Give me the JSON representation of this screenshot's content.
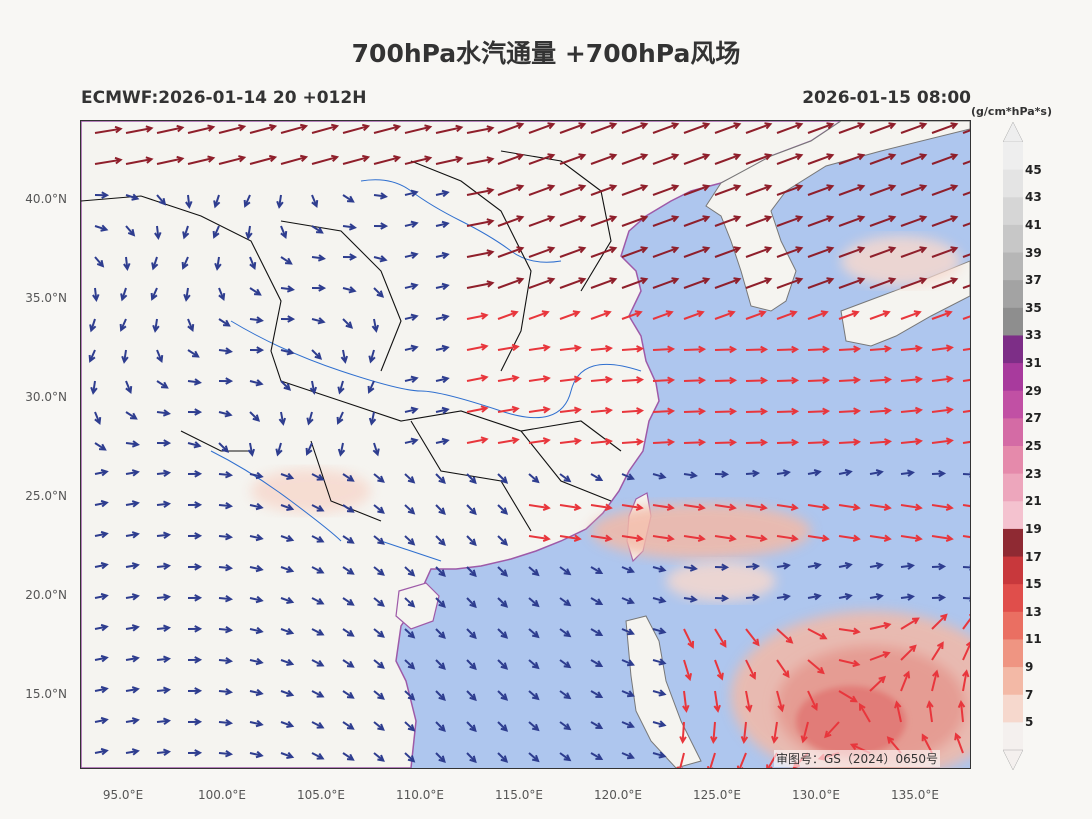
{
  "header": {
    "title": "700hPa水汽通量 +700hPa风场",
    "model_run": "ECMWF:2026-01-14 20 +012H",
    "valid_time": "2026-01-15 08:00",
    "unit": "(g/cm*hPa*s)"
  },
  "axes": {
    "lat_labels": [
      "40.0°N",
      "35.0°N",
      "30.0°N",
      "25.0°N",
      "20.0°N",
      "15.0°N"
    ],
    "lon_labels": [
      "95.0°E",
      "100.0°E",
      "105.0°E",
      "110.0°E",
      "115.0°E",
      "120.0°E",
      "125.0°E",
      "130.0°E",
      "135.0°E"
    ]
  },
  "colorbar": {
    "labels": [
      "45",
      "43",
      "41",
      "39",
      "37",
      "35",
      "33",
      "31",
      "29",
      "27",
      "25",
      "23",
      "21",
      "19",
      "17",
      "15",
      "13",
      "11",
      "9",
      "7",
      "5"
    ],
    "colors": [
      "#f4f0ee",
      "#f6d8cd",
      "#f3b9a6",
      "#ef9582",
      "#ea6f62",
      "#e04e4b",
      "#c8383c",
      "#8f2a33",
      "#f4c2cf",
      "#eda6bc",
      "#e58aab",
      "#d46ba5",
      "#c150a4",
      "#a83a9d",
      "#7d2e87",
      "#8e8e8e",
      "#a3a3a3",
      "#b6b6b6",
      "#c7c7c7",
      "#d6d6d6",
      "#e4e4e4",
      "#eeeeee"
    ]
  },
  "legend_colors": {
    "wind_low": "#2e3d8f",
    "wind_mid": "#e8363c",
    "wind_high": "#8f1f2b",
    "ocean": "#aec6ee",
    "land": "#f5f4f0"
  },
  "footer": {
    "approval": "审图号：GS（2024）0650号"
  }
}
